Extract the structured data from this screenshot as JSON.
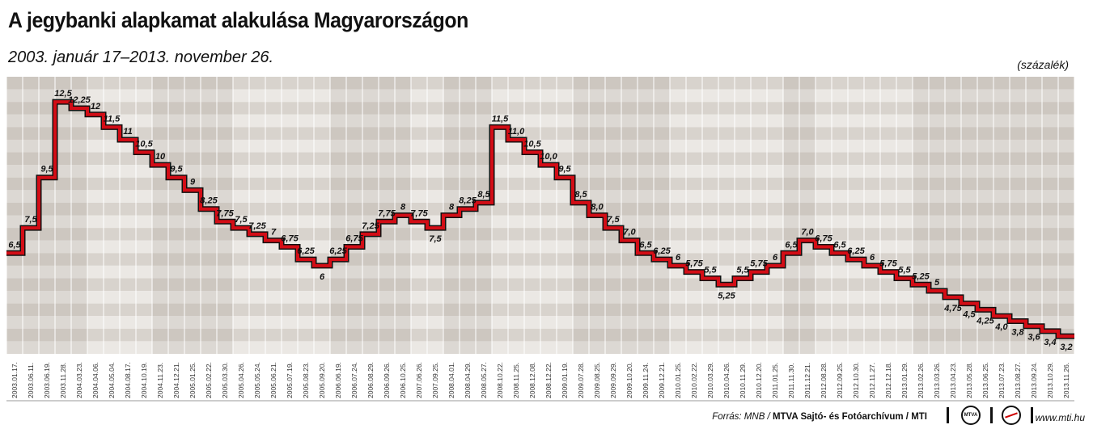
{
  "title": "A jegybanki alapkamat alakulása Magyarországon",
  "subtitle": "2003. január 17–2013. november 26.",
  "unit": "(százalék)",
  "footer": {
    "source_prefix": "Forrás: MNB / ",
    "source_bold": "MTVA Sajtó- és Fotóarchívum / MTI",
    "logo_mtva": "MTVA",
    "site": "www.mti.hu"
  },
  "colors": {
    "line": "#d30d16",
    "line_edge": "#111111",
    "band_dark": "#d8d3cd",
    "band_mid": "#c8c1b9",
    "band_light": "#ebe8e4"
  },
  "chart_data": {
    "type": "line",
    "step": true,
    "title": "A jegybanki alapkamat alakulása Magyarországon",
    "subtitle": "2003. január 17–2013. november 26.",
    "ylabel": "(százalék)",
    "ylim": [
      2.5,
      13.5
    ],
    "grid": true,
    "x": [
      "2003.01.17.",
      "2003.06.11.",
      "2003.06.19.",
      "2003.11.28.",
      "2004.03.23.",
      "2004.04.06.",
      "2004.05.04.",
      "2004.08.17.",
      "2004.10.19.",
      "2004.11.23.",
      "2004.12.21.",
      "2005.01.25.",
      "2005.02.22.",
      "2005.03.30.",
      "2005.04.26.",
      "2005.05.24.",
      "2005.06.21.",
      "2005.07.19.",
      "2005.08.23.",
      "2005.09.20.",
      "2006.06.19.",
      "2006.07.24.",
      "2006.08.29.",
      "2006.09.26.",
      "2006.10.25.",
      "2007.06.26.",
      "2007.09.25.",
      "2008.04.01.",
      "2008.04.29.",
      "2008.05.27.",
      "2008.10.22.",
      "2008.11.25.",
      "2008.12.08.",
      "2008.12.22.",
      "2009.01.19.",
      "2009.07.28.",
      "2009.08.25.",
      "2009.09.29.",
      "2009.10.20.",
      "2009.11.24.",
      "2009.12.21.",
      "2010.01.25.",
      "2010.02.22.",
      "2010.03.29.",
      "2010.04.26.",
      "2010.11.29.",
      "2010.12.20.",
      "2011.01.25.",
      "2011.11.30.",
      "2011.12.21.",
      "2012.08.28.",
      "2012.09.25.",
      "2012.10.30.",
      "2012.11.27.",
      "2012.12.18.",
      "2013.01.29.",
      "2013.02.26.",
      "2013.03.26.",
      "2013.04.23.",
      "2013.05.28.",
      "2013.06.25.",
      "2013.07.23.",
      "2013.08.27.",
      "2013.09.24.",
      "2013.10.29.",
      "2013.11.26."
    ],
    "values": [
      6.5,
      7.5,
      9.5,
      12.5,
      12.25,
      12,
      11.5,
      11,
      10.5,
      10,
      9.5,
      9,
      8.25,
      7.75,
      7.5,
      7.25,
      7,
      6.75,
      6.25,
      6,
      6.25,
      6.75,
      7.25,
      7.75,
      8,
      7.75,
      7.5,
      8,
      8.25,
      8.5,
      11.5,
      11.0,
      10.5,
      10.0,
      9.5,
      8.5,
      8.0,
      7.5,
      7.0,
      6.5,
      6.25,
      6,
      5.75,
      5.5,
      5.25,
      5.5,
      5.75,
      6,
      6.5,
      7.0,
      6.75,
      6.5,
      6.25,
      6,
      5.75,
      5.5,
      5.25,
      5,
      4.75,
      4.5,
      4.25,
      4.0,
      3.8,
      3.6,
      3.4,
      3.2
    ],
    "data_labels": [
      "6,5",
      "7,5",
      "9,5",
      "12,5",
      "12,25",
      "12",
      "11,5",
      "11",
      "10,5",
      "10",
      "9,5",
      "9",
      "8,25",
      "7,75",
      "7,5",
      "7,25",
      "7",
      "6,75",
      "6,25",
      "6",
      "6,25",
      "6,75",
      "7,25",
      "7,75",
      "8",
      "7,75",
      "7,5",
      "8",
      "8,25",
      "8,5",
      "11,5",
      "11,0",
      "10,5",
      "10,0",
      "9,5",
      "8,5",
      "8,0",
      "7,5",
      "7,0",
      "6,5",
      "6,25",
      "6",
      "5,75",
      "5,5",
      "5,25",
      "5,5",
      "5,75",
      "6",
      "6,5",
      "7,0",
      "6,75",
      "6,5",
      "6,25",
      "6",
      "5,75",
      "5,5",
      "5,25",
      "5",
      "4,75",
      "4,5",
      "4,25",
      "4,0",
      "3,8",
      "3,6",
      "3,4",
      "3,2"
    ]
  }
}
